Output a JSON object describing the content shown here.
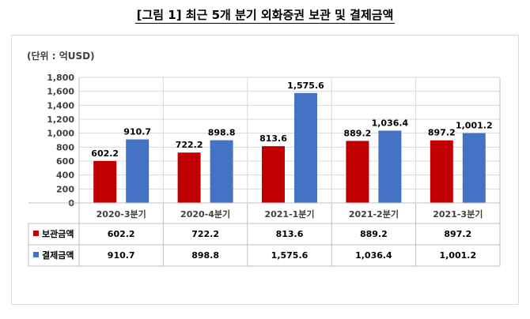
{
  "figure": {
    "title": "[그림 1] 최근 5개 분기 외화증권 보관 및 결제금액",
    "unit_label": "(단위 : 억USD)"
  },
  "chart_data": {
    "type": "bar",
    "categories": [
      "2020-3분기",
      "2020-4분기",
      "2021-1분기",
      "2021-2분기",
      "2021-3분기"
    ],
    "series": [
      {
        "name": "보관금액",
        "values": [
          602.2,
          722.2,
          813.6,
          889.2,
          897.2
        ],
        "labels": [
          "602.2",
          "722.2",
          "813.6",
          "889.2",
          "897.2"
        ],
        "color": "#c00000"
      },
      {
        "name": "결제금액",
        "values": [
          910.7,
          898.8,
          1575.6,
          1036.4,
          1001.2
        ],
        "labels": [
          "910.7",
          "898.8",
          "1,575.6",
          "1,036.4",
          "1,001.2"
        ],
        "color": "#4472c4"
      }
    ],
    "ylim": [
      0,
      1800
    ],
    "yticks": [
      "0",
      "200",
      "400",
      "600",
      "800",
      "1,000",
      "1,200",
      "1,400",
      "1,600",
      "1,800"
    ],
    "grid": true,
    "data_table": true
  }
}
